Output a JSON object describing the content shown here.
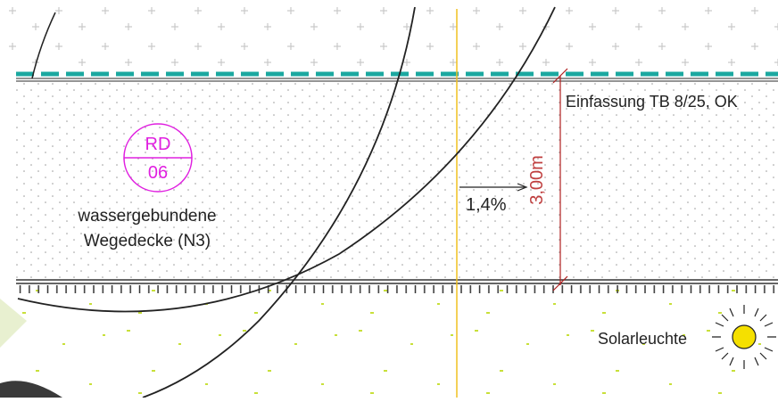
{
  "labels": {
    "code_top": "RD",
    "code_bottom": "06",
    "surface_line1": "wassergebundene",
    "surface_line2": "Wegedecke (N3)",
    "edging": "Einfassung TB 8/25, OK",
    "slope": "1,4%",
    "width": "3,00m",
    "light": "Solarleuchte"
  }
}
